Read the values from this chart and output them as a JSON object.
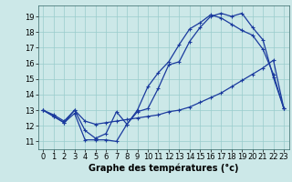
{
  "xlabel": "Graphe des températures (°c)",
  "bg_color": "#cce8e8",
  "line_color": "#1a3a9e",
  "grid_color": "#99cccc",
  "xlim": [
    -0.5,
    23.5
  ],
  "ylim": [
    10.5,
    19.7
  ],
  "xticks": [
    0,
    1,
    2,
    3,
    4,
    5,
    6,
    7,
    8,
    9,
    10,
    11,
    12,
    13,
    14,
    15,
    16,
    17,
    18,
    19,
    20,
    21,
    22,
    23
  ],
  "yticks": [
    11,
    12,
    13,
    14,
    15,
    16,
    17,
    18,
    19
  ],
  "series1_x": [
    0,
    1,
    2,
    3,
    4,
    5,
    6,
    7,
    8,
    9,
    10,
    11,
    12,
    13,
    14,
    15,
    16,
    17,
    18,
    19,
    20,
    21,
    22,
    23
  ],
  "series1_y": [
    13.0,
    12.6,
    12.2,
    12.8,
    11.1,
    11.1,
    11.1,
    11.0,
    12.1,
    12.9,
    13.1,
    14.4,
    15.9,
    16.1,
    17.4,
    18.3,
    19.0,
    19.2,
    19.0,
    19.2,
    18.3,
    17.5,
    15.1,
    13.1
  ],
  "series2_x": [
    0,
    1,
    2,
    3,
    4,
    5,
    6,
    7,
    8,
    9,
    10,
    11,
    12,
    13,
    14,
    15,
    16,
    17,
    18,
    19,
    20,
    21,
    22,
    23
  ],
  "series2_y": [
    13.0,
    12.6,
    12.2,
    13.0,
    11.7,
    11.2,
    11.5,
    12.9,
    12.1,
    13.0,
    14.5,
    15.4,
    16.1,
    17.2,
    18.2,
    18.6,
    19.1,
    18.9,
    18.5,
    18.1,
    17.8,
    16.9,
    15.3,
    13.1
  ],
  "series3_x": [
    0,
    1,
    2,
    3,
    4,
    5,
    6,
    7,
    8,
    9,
    10,
    11,
    12,
    13,
    14,
    15,
    16,
    17,
    18,
    19,
    20,
    21,
    22,
    23
  ],
  "series3_y": [
    13.0,
    12.7,
    12.3,
    13.0,
    12.3,
    12.1,
    12.2,
    12.3,
    12.4,
    12.5,
    12.6,
    12.7,
    12.9,
    13.0,
    13.2,
    13.5,
    13.8,
    14.1,
    14.5,
    14.9,
    15.3,
    15.7,
    16.2,
    13.1
  ],
  "xlabel_fontsize": 7,
  "tick_fontsize": 6,
  "marker_size": 3,
  "line_width": 0.9
}
